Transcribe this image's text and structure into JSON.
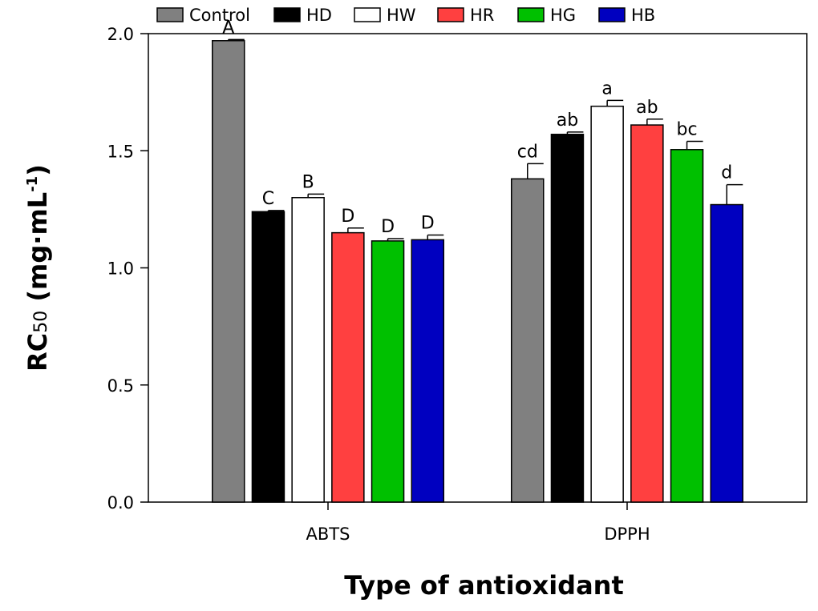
{
  "chart_data": {
    "type": "bar",
    "xlabel": "Type of antioxidant",
    "ylabel": "RC50 (mg·mL-1)",
    "ylabel_parts": {
      "main": "RC",
      "sub": "50",
      "open": " (mg·mL",
      "sup": "-1",
      "close": ")"
    },
    "ylim": [
      0,
      2.0
    ],
    "yticks": [
      "0.0",
      "0.5",
      "1.0",
      "1.5",
      "2.0"
    ],
    "categories": [
      "ABTS",
      "DPPH"
    ],
    "legend_position": "top",
    "grid": false,
    "series": [
      {
        "name": "Control",
        "color": "#808080",
        "values": [
          1.97,
          1.38
        ],
        "errors": [
          0.005,
          0.065
        ],
        "letters": [
          "A",
          "cd"
        ]
      },
      {
        "name": "HD",
        "color": "#000000",
        "values": [
          1.24,
          1.57
        ],
        "errors": [
          0.005,
          0.01
        ],
        "letters": [
          "C",
          "ab"
        ]
      },
      {
        "name": "HW",
        "color": "#ffffff",
        "values": [
          1.3,
          1.69
        ],
        "errors": [
          0.015,
          0.025
        ],
        "letters": [
          "B",
          "a"
        ]
      },
      {
        "name": "HR",
        "color": "#ff4040",
        "values": [
          1.15,
          1.61
        ],
        "errors": [
          0.02,
          0.025
        ],
        "letters": [
          "D",
          "ab"
        ]
      },
      {
        "name": "HG",
        "color": "#00c000",
        "values": [
          1.115,
          1.505
        ],
        "errors": [
          0.01,
          0.035
        ],
        "letters": [
          "D",
          "bc"
        ]
      },
      {
        "name": "HB",
        "color": "#0000c0",
        "values": [
          1.12,
          1.27
        ],
        "errors": [
          0.02,
          0.085
        ],
        "letters": [
          "D",
          "d"
        ]
      }
    ]
  }
}
